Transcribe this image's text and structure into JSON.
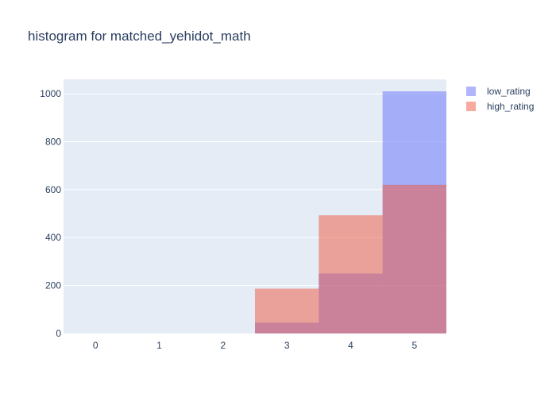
{
  "chart_data": {
    "type": "bar",
    "title": "histogram for matched_yehidot_math",
    "xlabel": "",
    "ylabel": "",
    "categories": [
      "0",
      "1",
      "2",
      "3",
      "4",
      "5"
    ],
    "x": [
      0,
      1,
      2,
      3,
      4,
      5
    ],
    "xlim": [
      -0.5,
      5.5
    ],
    "ylim": [
      0,
      1060
    ],
    "yticks": [
      0,
      200,
      400,
      600,
      800,
      1000
    ],
    "grid": true,
    "barmode": "overlay",
    "legend_position": "top-right",
    "series": [
      {
        "name": "low_rating",
        "values": [
          0,
          0,
          0,
          45,
          250,
          1010
        ],
        "color": "#636efa"
      },
      {
        "name": "high_rating",
        "values": [
          0,
          0,
          0,
          187,
          493,
          620
        ],
        "color": "#ef553b"
      }
    ],
    "plot_bg": "#e5ecf6"
  }
}
